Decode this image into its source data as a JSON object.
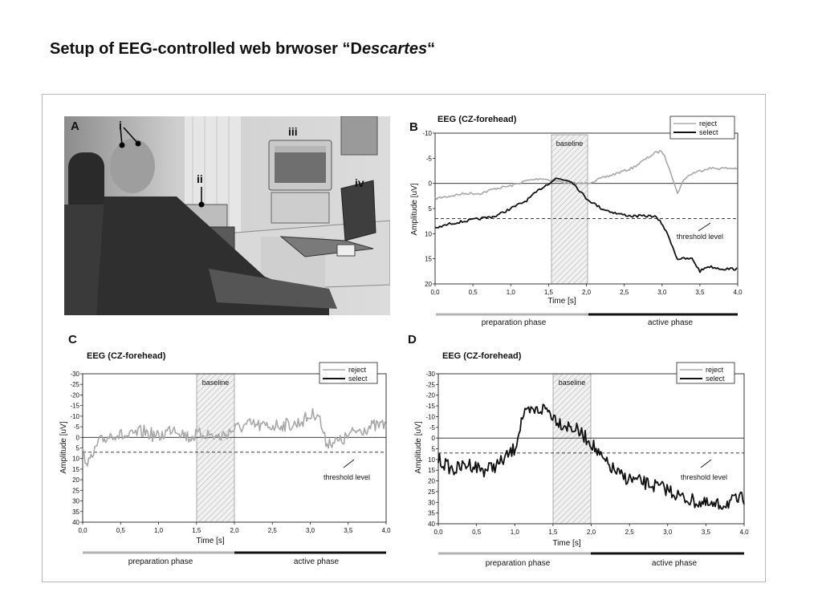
{
  "slide": {
    "title_main": "Setup of EEG-controlled web brwoser “D",
    "title_italic": "escartes",
    "title_end": "“"
  },
  "photo": {
    "panel_letter": "A",
    "labels": [
      "i",
      "ii",
      "iii",
      "iv"
    ]
  },
  "panels": [
    {
      "letter": "B",
      "title": "EEG (CZ-forehead)",
      "legend": [
        "reject",
        "select"
      ],
      "baseline_label": "baseline",
      "threshold_label": "threshold level",
      "xlabel": "Time [s]",
      "ylabel": "Amplitude [uV]",
      "phase_labels": [
        "preparation phase",
        "active phase"
      ]
    },
    {
      "letter": "C",
      "title": "EEG (CZ-forehead)",
      "legend": [
        "reject",
        "select"
      ],
      "baseline_label": "baseline",
      "threshold_label": "threshold level",
      "xlabel": "Time [s]",
      "ylabel": "Amplitude [uV]",
      "phase_labels": [
        "preparation phase",
        "active phase"
      ]
    },
    {
      "letter": "D",
      "title": "EEG (CZ-forehead)",
      "legend": [
        "reject",
        "select"
      ],
      "baseline_label": "baseline",
      "threshold_label": "threshold level",
      "xlabel": "Time [s]",
      "ylabel": "Amplitude [uV]",
      "phase_labels": [
        "preparation phase",
        "active phase"
      ]
    }
  ],
  "chart_data": [
    {
      "type": "line",
      "title": "EEG (CZ-forehead)",
      "xlabel": "Time [s]",
      "ylabel": "Amplitude [uV]",
      "xlim": [
        0,
        4
      ],
      "ylim": [
        -10,
        20
      ],
      "y_inverted": true,
      "x_ticks": [
        "0,0",
        "0,5",
        "1,0",
        "1,5",
        "2,0",
        "2,5",
        "3,0",
        "3,5",
        "4,0"
      ],
      "y_ticks": [
        "-10",
        "-5",
        "0",
        "5",
        "10",
        "15",
        "20"
      ],
      "baseline_window": [
        1.5,
        2.0
      ],
      "threshold": 7,
      "legend_position": "top-right",
      "series": [
        {
          "name": "reject",
          "color": "#a8a8a8",
          "x": [
            0,
            0.2,
            0.4,
            0.6,
            0.8,
            1.0,
            1.2,
            1.4,
            1.6,
            1.8,
            2.0,
            2.2,
            2.4,
            2.6,
            2.8,
            2.9,
            3.0,
            3.1,
            3.2,
            3.3,
            3.4,
            3.6,
            3.8,
            4.0
          ],
          "y": [
            3,
            2.5,
            2,
            2,
            1,
            0.5,
            -0.5,
            -1,
            -0.5,
            0,
            0,
            -1,
            -2,
            -3,
            -5,
            -6,
            -6.5,
            -3,
            2,
            -1,
            -2,
            -3,
            -3,
            -3
          ]
        },
        {
          "name": "select",
          "color": "#111111",
          "x": [
            0,
            0.2,
            0.4,
            0.6,
            0.8,
            1.0,
            1.2,
            1.4,
            1.6,
            1.8,
            2.0,
            2.2,
            2.4,
            2.6,
            2.8,
            2.9,
            3.0,
            3.1,
            3.2,
            3.3,
            3.4,
            3.5,
            3.6,
            3.8,
            4.0
          ],
          "y": [
            9,
            8,
            7.5,
            7,
            6.5,
            5,
            3.5,
            1,
            -1,
            -0.5,
            3,
            5,
            6,
            6.5,
            6.5,
            6.5,
            8,
            11,
            15,
            15,
            15,
            17.5,
            16.5,
            17,
            17
          ]
        }
      ]
    },
    {
      "type": "line",
      "title": "EEG (CZ-forehead)",
      "xlabel": "Time [s]",
      "ylabel": "Amplitude [uV]",
      "xlim": [
        0,
        4
      ],
      "ylim": [
        -30,
        40
      ],
      "y_inverted": true,
      "x_ticks": [
        "0,0",
        "0,5",
        "1,0",
        "1,5",
        "2,0",
        "2,5",
        "3,0",
        "3,5",
        "4,0"
      ],
      "y_ticks": [
        "-30",
        "-25",
        "-20",
        "-15",
        "-10",
        "-5",
        "0",
        "5",
        "10",
        "15",
        "20",
        "25",
        "30",
        "35",
        "40"
      ],
      "baseline_window": [
        1.5,
        2.0
      ],
      "threshold": 7,
      "legend_position": "top-right",
      "series": [
        {
          "name": "reject",
          "color": "#a8a8a8",
          "x": [
            0,
            0.1,
            0.2,
            0.4,
            0.6,
            0.8,
            1.0,
            1.2,
            1.4,
            1.6,
            1.8,
            2.0,
            2.2,
            2.4,
            2.6,
            2.8,
            3.0,
            3.1,
            3.2,
            3.4,
            3.6,
            3.8,
            4.0
          ],
          "y": [
            8,
            12,
            3,
            -2,
            0,
            -3,
            0,
            -5,
            0,
            -2,
            0,
            -4,
            -6,
            -5,
            -6,
            -6,
            -10,
            -12,
            2,
            2,
            -3,
            -5,
            -6
          ]
        }
      ]
    },
    {
      "type": "line",
      "title": "EEG (CZ-forehead)",
      "xlabel": "Time [s]",
      "ylabel": "Amplitude [uV]",
      "xlim": [
        0,
        4
      ],
      "ylim": [
        -30,
        40
      ],
      "y_inverted": true,
      "x_ticks": [
        "0,0",
        "0,5",
        "1,0",
        "1,5",
        "2,0",
        "2,5",
        "3,0",
        "3,5",
        "4,0"
      ],
      "y_ticks": [
        "-30",
        "-25",
        "-20",
        "-15",
        "-10",
        "-5",
        "0",
        "5",
        "10",
        "15",
        "20",
        "25",
        "30",
        "35",
        "40"
      ],
      "baseline_window": [
        1.5,
        2.0
      ],
      "threshold": 7,
      "legend_position": "top-right",
      "series": [
        {
          "name": "select",
          "color": "#111111",
          "x": [
            0,
            0.2,
            0.4,
            0.6,
            0.8,
            1.0,
            1.1,
            1.2,
            1.4,
            1.6,
            1.8,
            2.0,
            2.1,
            2.2,
            2.4,
            2.6,
            2.8,
            3.0,
            3.2,
            3.4,
            3.6,
            3.8,
            4.0
          ],
          "y": [
            10,
            15,
            12,
            15,
            12,
            5,
            -10,
            -12,
            -14,
            -7,
            -4,
            2,
            8,
            12,
            18,
            20,
            22,
            24,
            28,
            30,
            32,
            30,
            28
          ]
        }
      ]
    }
  ]
}
